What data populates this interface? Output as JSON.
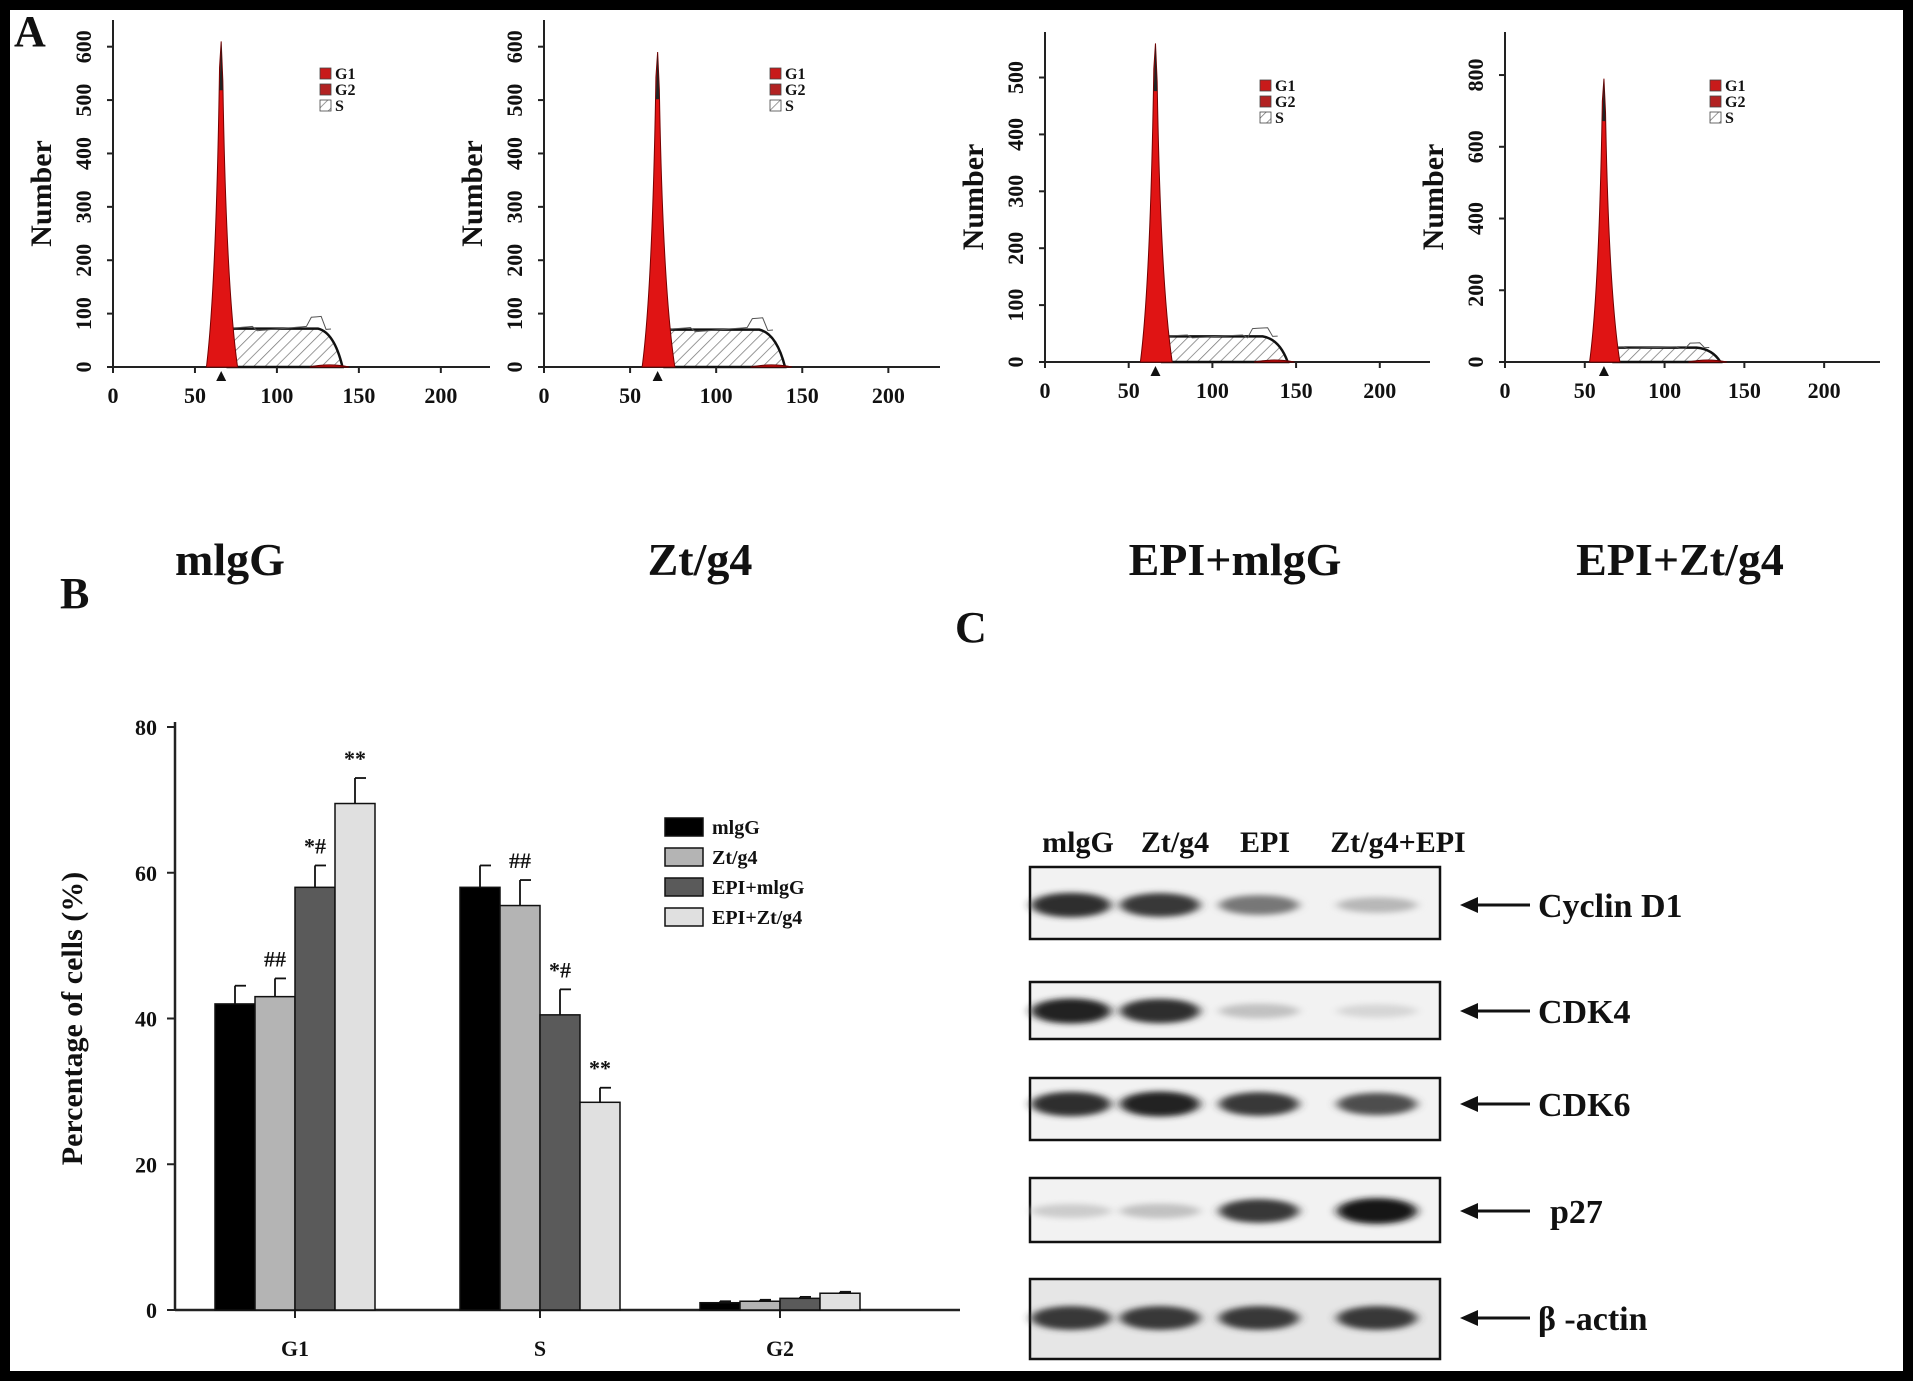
{
  "panels": {
    "a": "A",
    "b": "B",
    "c": "C"
  },
  "chart_data": [
    {
      "type": "area",
      "panel": "A",
      "condition": "mlgG",
      "ylabel": "Number",
      "xlim": [
        0,
        230
      ],
      "ylim": [
        0,
        650
      ],
      "xticks": [
        0,
        50,
        100,
        150,
        200
      ],
      "yticks": [
        0,
        100,
        200,
        300,
        400,
        500,
        600
      ],
      "legend": [
        "G1",
        "G2",
        "S"
      ],
      "g1_peak": {
        "x": 66,
        "height": 610
      },
      "s_plateau": 72,
      "s_range": [
        70,
        140
      ]
    },
    {
      "type": "area",
      "panel": "A",
      "condition": "Zt/g4",
      "ylabel": "Number",
      "xlim": [
        0,
        230
      ],
      "ylim": [
        0,
        650
      ],
      "xticks": [
        0,
        50,
        100,
        150,
        200
      ],
      "yticks": [
        0,
        100,
        200,
        300,
        400,
        500,
        600
      ],
      "legend": [
        "G1",
        "G2",
        "S"
      ],
      "g1_peak": {
        "x": 66,
        "height": 590
      },
      "s_plateau": 70,
      "s_range": [
        70,
        140
      ]
    },
    {
      "type": "area",
      "panel": "A",
      "condition": "EPI+mlgG",
      "ylabel": "Number",
      "xlim": [
        0,
        230
      ],
      "ylim": [
        0,
        580
      ],
      "xticks": [
        0,
        50,
        100,
        150,
        200
      ],
      "yticks": [
        0,
        100,
        200,
        300,
        400,
        500
      ],
      "legend": [
        "G1",
        "G2",
        "S"
      ],
      "g1_peak": {
        "x": 66,
        "height": 560
      },
      "s_plateau": 45,
      "s_range": [
        70,
        145
      ]
    },
    {
      "type": "area",
      "panel": "A",
      "condition": "EPI+Zt/g4",
      "ylabel": "Number",
      "xlim": [
        0,
        235
      ],
      "ylim": [
        0,
        920
      ],
      "xticks": [
        0,
        50,
        100,
        150,
        200
      ],
      "yticks": [
        0,
        200,
        400,
        600,
        800
      ],
      "legend": [
        "G1",
        "G2",
        "S"
      ],
      "g1_peak": {
        "x": 62,
        "height": 790
      },
      "s_plateau": 40,
      "s_range": [
        68,
        135
      ]
    },
    {
      "type": "bar",
      "panel": "B",
      "ylabel": "Percentage of cells (%)",
      "ylim": [
        0,
        80
      ],
      "yticks": [
        0,
        20,
        40,
        60,
        80
      ],
      "categories": [
        "G1",
        "S",
        "G2"
      ],
      "series": [
        {
          "name": "mlgG",
          "color": "#000000",
          "values": [
            42,
            58,
            1.0
          ],
          "errors": [
            2.5,
            3.0,
            0.2
          ],
          "annotations": [
            "",
            "",
            ""
          ]
        },
        {
          "name": "Zt/g4",
          "color": "#b4b4b4",
          "values": [
            43,
            55.5,
            1.2
          ],
          "errors": [
            2.5,
            3.5,
            0.2
          ],
          "annotations": [
            "##",
            "##",
            ""
          ]
        },
        {
          "name": "EPI+mlgG",
          "color": "#5a5a5a",
          "values": [
            58,
            40.5,
            1.6
          ],
          "errors": [
            3.0,
            3.5,
            0.2
          ],
          "annotations": [
            "*#",
            "*#",
            ""
          ]
        },
        {
          "name": "EPI+Zt/g4",
          "color": "#e0e0e0",
          "values": [
            69.5,
            28.5,
            2.3
          ],
          "errors": [
            3.5,
            2.0,
            0.2
          ],
          "annotations": [
            "**",
            "**",
            ""
          ]
        }
      ]
    }
  ],
  "western_blot": {
    "lanes": [
      "mlgG",
      "Zt/g4",
      "EPI",
      "Zt/g4+EPI"
    ],
    "proteins": [
      {
        "name": "Cyclin D1",
        "intensity": [
          0.9,
          0.85,
          0.55,
          0.25
        ]
      },
      {
        "name": "CDK4",
        "intensity": [
          0.95,
          0.9,
          0.2,
          0.1
        ]
      },
      {
        "name": "CDK6",
        "intensity": [
          0.9,
          0.95,
          0.85,
          0.75
        ]
      },
      {
        "name": "p27",
        "intensity": [
          0.15,
          0.2,
          0.85,
          1.0
        ]
      },
      {
        "name": "β -actin",
        "intensity": [
          0.85,
          0.85,
          0.85,
          0.85
        ]
      }
    ]
  }
}
